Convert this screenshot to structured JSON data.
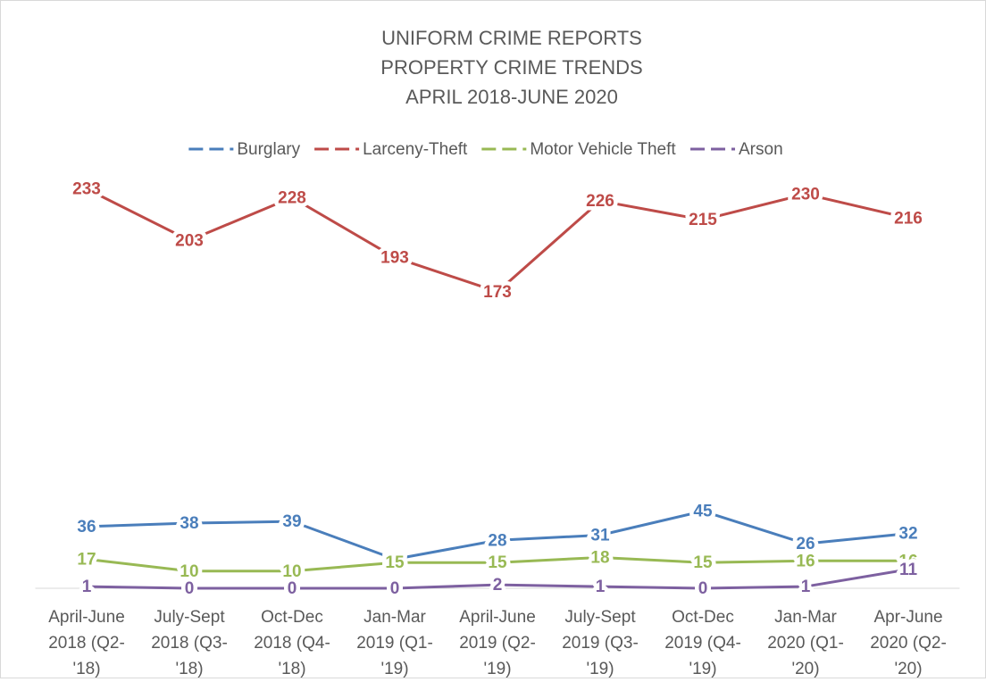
{
  "chart_data": {
    "type": "line",
    "title": [
      "UNIFORM CRIME REPORTS",
      "PROPERTY CRIME TRENDS",
      "APRIL 2018-JUNE 2020"
    ],
    "categories": [
      "April-June 2018 (Q2-'18)",
      "July-Sept 2018 (Q3-'18)",
      "Oct-Dec 2018 (Q4-'18)",
      "Jan-Mar 2019 (Q1-'19)",
      "April-June 2019 (Q2-'19)",
      "July-Sept 2019 (Q3-'19)",
      "Oct-Dec 2019 (Q4-'19)",
      "Jan-Mar 2020 (Q1-'20)",
      "Apr-June 2020 (Q2-'20)"
    ],
    "series": [
      {
        "name": "Burglary",
        "color": "#4a7ebb",
        "values": [
          36,
          38,
          39,
          17,
          28,
          31,
          45,
          26,
          32
        ]
      },
      {
        "name": "Larceny-Theft",
        "color": "#be4b48",
        "values": [
          233,
          203,
          228,
          193,
          173,
          226,
          215,
          230,
          216
        ]
      },
      {
        "name": "Motor Vehicle Theft",
        "color": "#98b954",
        "values": [
          17,
          10,
          10,
          15,
          15,
          18,
          15,
          16,
          16
        ]
      },
      {
        "name": "Arson",
        "color": "#7d60a0",
        "values": [
          1,
          0,
          0,
          0,
          2,
          1,
          0,
          1,
          11
        ]
      }
    ],
    "ylim": [
      0,
      250
    ],
    "legend": "top"
  }
}
